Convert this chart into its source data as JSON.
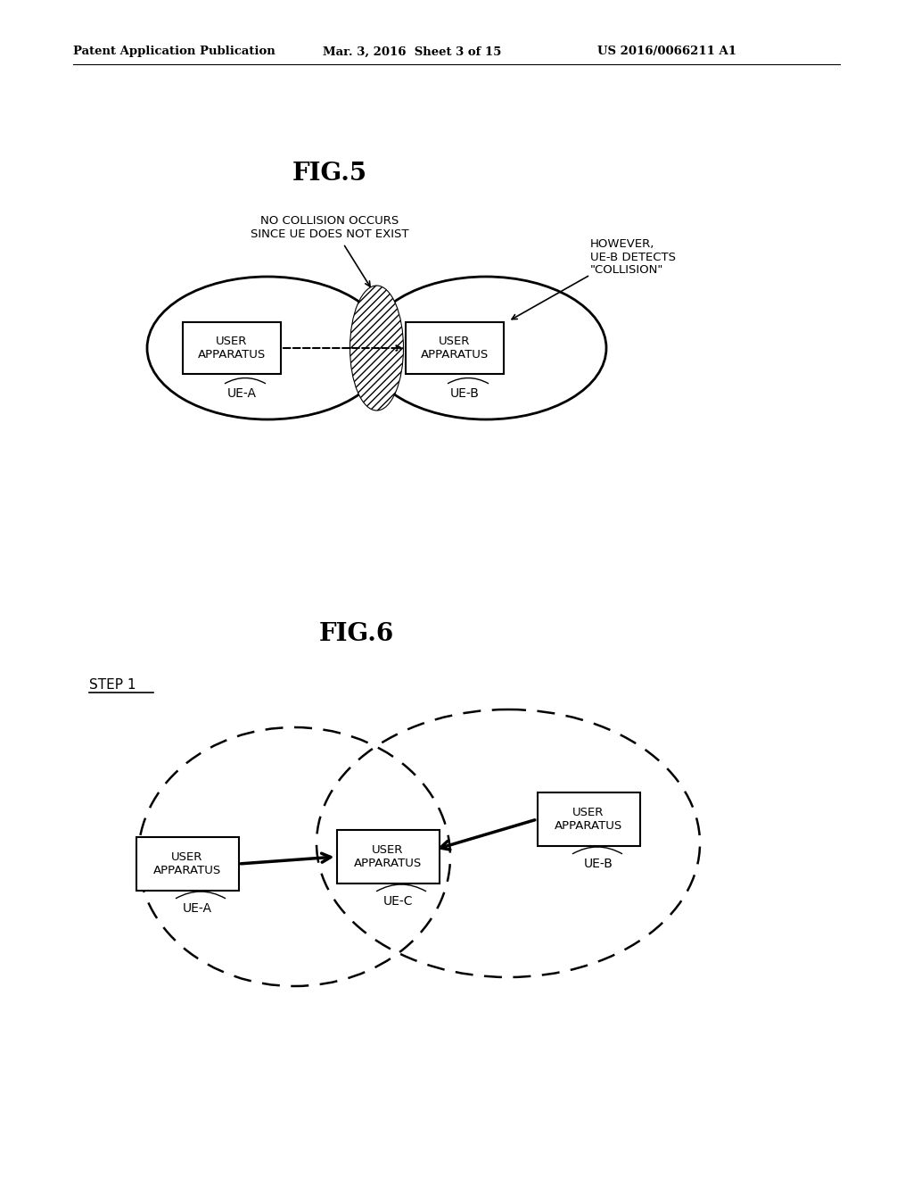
{
  "bg_color": "#ffffff",
  "header_text": "Patent Application Publication",
  "header_date": "Mar. 3, 2016  Sheet 3 of 15",
  "header_patent": "US 2016/0066211 A1",
  "fig5_title": "FIG.5",
  "fig6_title": "FIG.6",
  "fig5_annotation1": "NO COLLISION OCCURS\nSINCE UE DOES NOT EXIST",
  "fig5_annotation2": "HOWEVER,\nUE-B DETECTS\n\"COLLISION\"",
  "fig5_uea_label": "UE-A",
  "fig5_ueb_label": "UE-B",
  "fig6_step_label": "STEP 1",
  "fig6_uea_label": "UE-A",
  "fig6_ueb_label": "UE-B",
  "fig6_uec_label": "UE-C",
  "box_text_ua": "USER\nAPPARATUS"
}
